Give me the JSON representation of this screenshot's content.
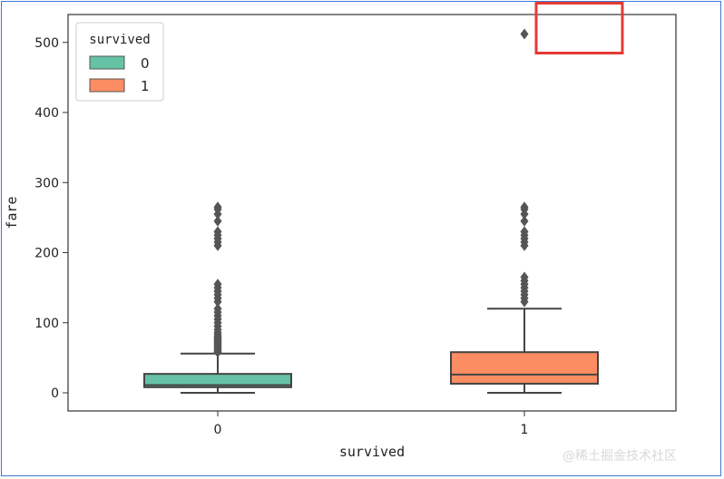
{
  "chart_data": {
    "type": "box",
    "xlabel": "survived",
    "ylabel": "fare",
    "categories": [
      "0",
      "1"
    ],
    "ylim": [
      -25,
      540
    ],
    "yticks": [
      0,
      100,
      200,
      300,
      400,
      500
    ],
    "legend": {
      "title": "survived",
      "placement": "top-left",
      "entries": [
        {
          "label": "0",
          "color": "#66c2a5"
        },
        {
          "label": "1",
          "color": "#fc8d62"
        }
      ]
    },
    "grid": false,
    "series": [
      {
        "name": "0",
        "category": "0",
        "color": "#66c2a5",
        "whisker_low": 0,
        "q1": 8,
        "median": 11,
        "q3": 27,
        "whisker_high": 56,
        "outliers": [
          58,
          60,
          62,
          64,
          66,
          68,
          70,
          72,
          74,
          76,
          78,
          80,
          83,
          86,
          90,
          95,
          100,
          105,
          110,
          115,
          120,
          130,
          135,
          140,
          145,
          150,
          155,
          210,
          215,
          220,
          225,
          230,
          245,
          255,
          262,
          265
        ]
      },
      {
        "name": "1",
        "category": "1",
        "color": "#fc8d62",
        "whisker_low": 0,
        "q1": 13,
        "median": 26,
        "q3": 58,
        "whisker_high": 120,
        "outliers": [
          130,
          135,
          140,
          145,
          150,
          155,
          160,
          165,
          210,
          215,
          220,
          225,
          230,
          245,
          255,
          262,
          265,
          512
        ]
      }
    ],
    "annotations": [
      {
        "type": "highlight-box",
        "color": "#e53935",
        "target": "outlier",
        "value": 512,
        "category": "1"
      }
    ]
  },
  "watermark": "@稀土掘金技术社区"
}
